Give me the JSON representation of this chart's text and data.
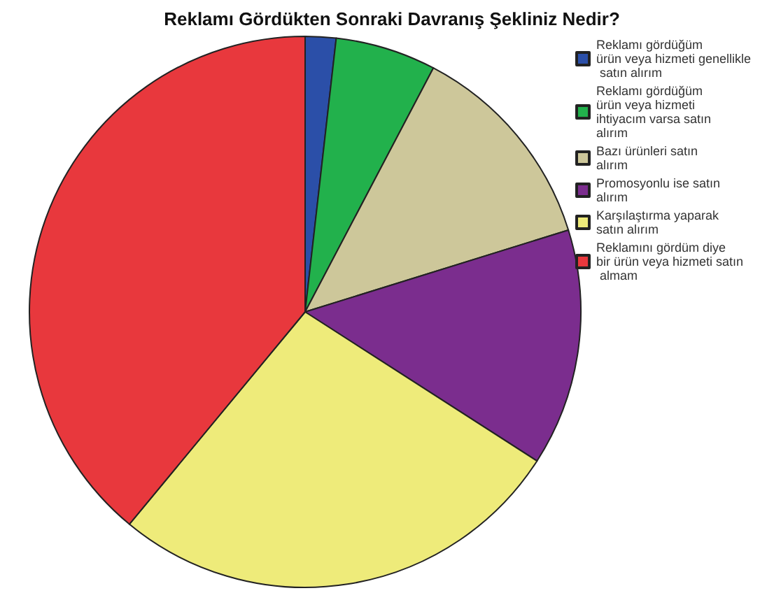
{
  "chart_data": {
    "type": "pie",
    "title": "Reklamı Gördükten Sonraki Davranış Şekliniz Nedir?",
    "categories": [
      "Reklamı gördüğüm ürün veya hizmeti genellikle satın alırım",
      "Reklamı gördüğüm ürün veya hizmeti ihtiyacım varsa satın alırım",
      "Bazı ürünleri satın alırım",
      "Promosyonlu ise satın alırım",
      "Karşılaştırma yaparak satın alırım",
      "Reklamını gördüm diye bir ürün veya hizmeti satın almam"
    ],
    "values": [
      1.8,
      5.9,
      12.5,
      13.9,
      26.9,
      39.0
    ],
    "colors": [
      "#2b4fa8",
      "#22b14c",
      "#cdc79a",
      "#7b2d8e",
      "#eeeb7a",
      "#e8383d"
    ],
    "legend": "top right"
  }
}
